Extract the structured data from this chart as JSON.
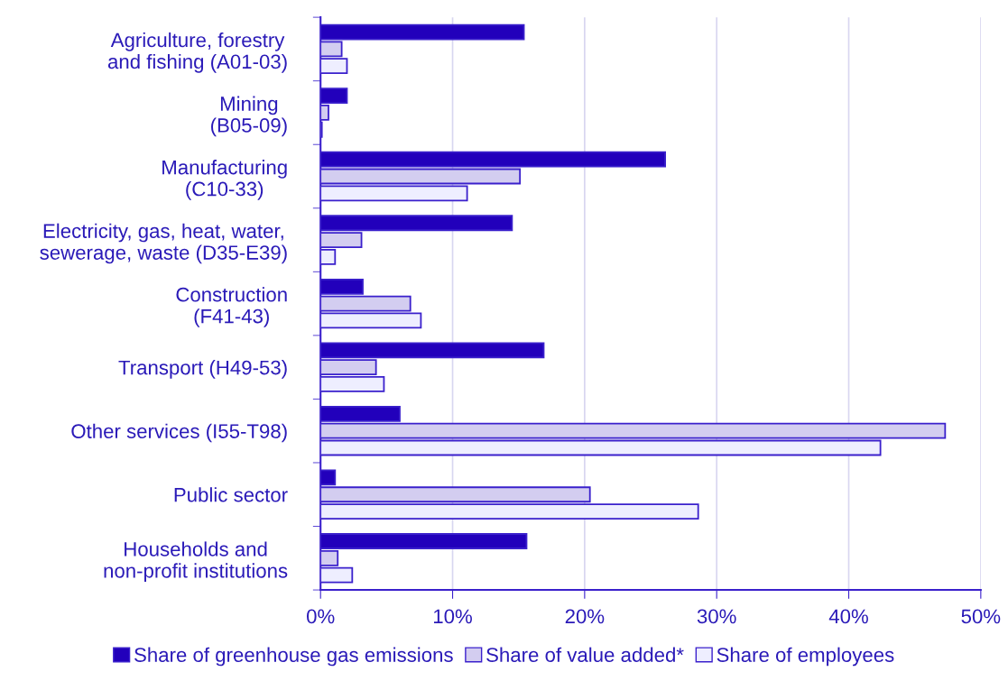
{
  "chart_data": {
    "type": "bar",
    "orientation": "horizontal",
    "categories": [
      "Agriculture, forestry\nand fishing (A01-03)",
      "Mining\n(B05-09)",
      "Manufacturing\n(C10-33)",
      "Electricity, gas, heat, water,\nsewerage, waste (D35-E39)",
      "Construction\n(F41-43)",
      "Transport (H49-53)",
      "Other services (I55-T98)",
      "Public sector",
      "Households and\nnon-profit institutions"
    ],
    "series": [
      {
        "name": "Share of greenhouse gas emissions",
        "color": "#2200bb",
        "values": [
          15.4,
          2.0,
          26.1,
          14.5,
          3.2,
          16.9,
          6.0,
          1.1,
          15.6
        ]
      },
      {
        "name": "Share of value added*",
        "color": "#d3cdf0",
        "values": [
          1.6,
          0.6,
          15.1,
          3.1,
          6.8,
          4.2,
          47.3,
          20.4,
          1.3
        ]
      },
      {
        "name": "Share of employees",
        "color": "#eeeeff",
        "values": [
          2.0,
          0.1,
          11.1,
          1.1,
          7.6,
          4.8,
          42.4,
          28.6,
          2.4
        ]
      }
    ],
    "xlim": [
      0,
      50
    ],
    "xticks": [
      {
        "value": 0,
        "label": "0%"
      },
      {
        "value": 10,
        "label": "10%"
      },
      {
        "value": 20,
        "label": "20%"
      },
      {
        "value": 30,
        "label": "30%"
      },
      {
        "value": 40,
        "label": "40%"
      },
      {
        "value": 50,
        "label": "50%"
      }
    ],
    "grid": "x",
    "legend": "bottom"
  }
}
